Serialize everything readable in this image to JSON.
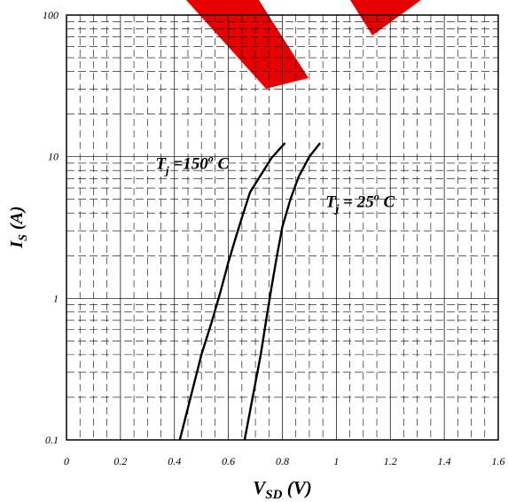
{
  "chart_data": {
    "type": "line",
    "xlabel": {
      "main": "V",
      "sub": "SD",
      "unit": "(V)"
    },
    "ylabel": {
      "main": "I",
      "sub": "S",
      "unit": "(A)"
    },
    "xlim": [
      0,
      1.6
    ],
    "ylim": [
      0.1,
      100
    ],
    "yscale": "log",
    "grid": true,
    "x_ticks": [
      "0",
      "0.2",
      "0.4",
      "0.6",
      "0.8",
      "1",
      "1.2",
      "1.4",
      "1.6"
    ],
    "y_ticks": [
      "0.1",
      "1",
      "10",
      "100"
    ],
    "series": [
      {
        "name": "T_j = 150° C",
        "points": [
          [
            0.42,
            0.1
          ],
          [
            0.46,
            0.2
          ],
          [
            0.5,
            0.4
          ],
          [
            0.54,
            0.7
          ],
          [
            0.57,
            1.1
          ],
          [
            0.6,
            1.8
          ],
          [
            0.63,
            2.8
          ],
          [
            0.65,
            3.7
          ],
          [
            0.68,
            5.6
          ],
          [
            0.72,
            7.4
          ],
          [
            0.76,
            9.8
          ],
          [
            0.81,
            12.5
          ]
        ]
      },
      {
        "name": "T_j = 25° C",
        "points": [
          [
            0.66,
            0.1
          ],
          [
            0.69,
            0.2
          ],
          [
            0.72,
            0.4
          ],
          [
            0.74,
            0.7
          ],
          [
            0.76,
            1.2
          ],
          [
            0.78,
            2.0
          ],
          [
            0.8,
            3.2
          ],
          [
            0.83,
            5.0
          ],
          [
            0.86,
            7.2
          ],
          [
            0.9,
            10.0
          ],
          [
            0.94,
            12.5
          ]
        ]
      }
    ],
    "annotations": [
      {
        "main": "T",
        "sub": "j",
        "rest": " =150",
        "deg": "o",
        "unit": " C",
        "x": 0.33,
        "y": 8.2
      },
      {
        "main": "T",
        "sub": "j",
        "rest": " = 25",
        "deg": "o",
        "unit": " C",
        "x": 0.96,
        "y": 4.4
      }
    ]
  }
}
